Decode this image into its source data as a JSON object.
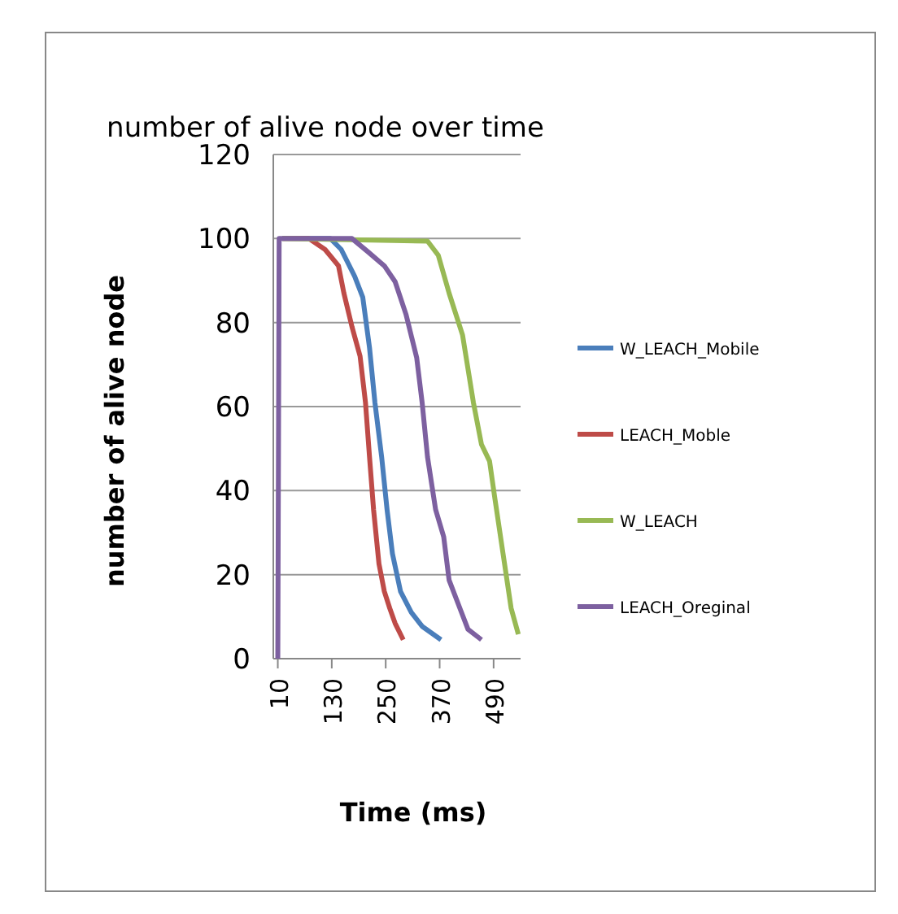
{
  "chart_data": {
    "type": "line",
    "title": "number of alive node over time",
    "xlabel": "Time (ms)",
    "ylabel": "number of alive node",
    "xlim": [
      0,
      550
    ],
    "xticks": [
      10,
      130,
      250,
      370,
      490
    ],
    "ylim": [
      0,
      120
    ],
    "yticks": [
      0,
      20,
      40,
      60,
      80,
      100,
      120
    ],
    "grid": "y",
    "legend": "right",
    "marker": "none",
    "line_style": "solid",
    "series": [
      {
        "name": "W_LEACH_Mobile",
        "color": "#4a7ebb",
        "x": [
          20,
          127,
          151,
          181,
          199,
          214,
          226,
          241,
          253,
          265,
          283,
          307,
          331,
          373
        ],
        "values": [
          100,
          100,
          97.4,
          91,
          86,
          74,
          61,
          48,
          35.5,
          25,
          16,
          11,
          7.7,
          4.5
        ]
      },
      {
        "name": "LEACH_Moble",
        "color": "#be4b48",
        "x": [
          20,
          79,
          115,
          145,
          157,
          175,
          193,
          205,
          214,
          223,
          235,
          247,
          259,
          271,
          289
        ],
        "values": [
          100,
          100,
          97.4,
          93.5,
          87,
          79,
          72,
          61,
          48,
          35.5,
          22.6,
          16,
          12,
          8.4,
          4.5
        ]
      },
      {
        "name": "W_LEACH",
        "color": "#98b954",
        "x": [
          20,
          343,
          367,
          391,
          421,
          445,
          463,
          481,
          493,
          511,
          529,
          545
        ],
        "values": [
          100,
          99.4,
          96,
          87,
          77,
          61,
          51,
          47,
          38,
          25,
          12,
          5.8
        ]
      },
      {
        "name": "LEACH_Oreginal",
        "color": "#7d60a0",
        "x": [
          10,
          13,
          175,
          211,
          247,
          271,
          295,
          319,
          331,
          343,
          361,
          379,
          391,
          415,
          433,
          463
        ],
        "values": [
          0,
          100,
          100,
          96.8,
          93.5,
          89.7,
          82,
          71.6,
          61,
          48,
          35.5,
          29,
          18.7,
          12,
          7,
          4.5
        ]
      }
    ]
  }
}
